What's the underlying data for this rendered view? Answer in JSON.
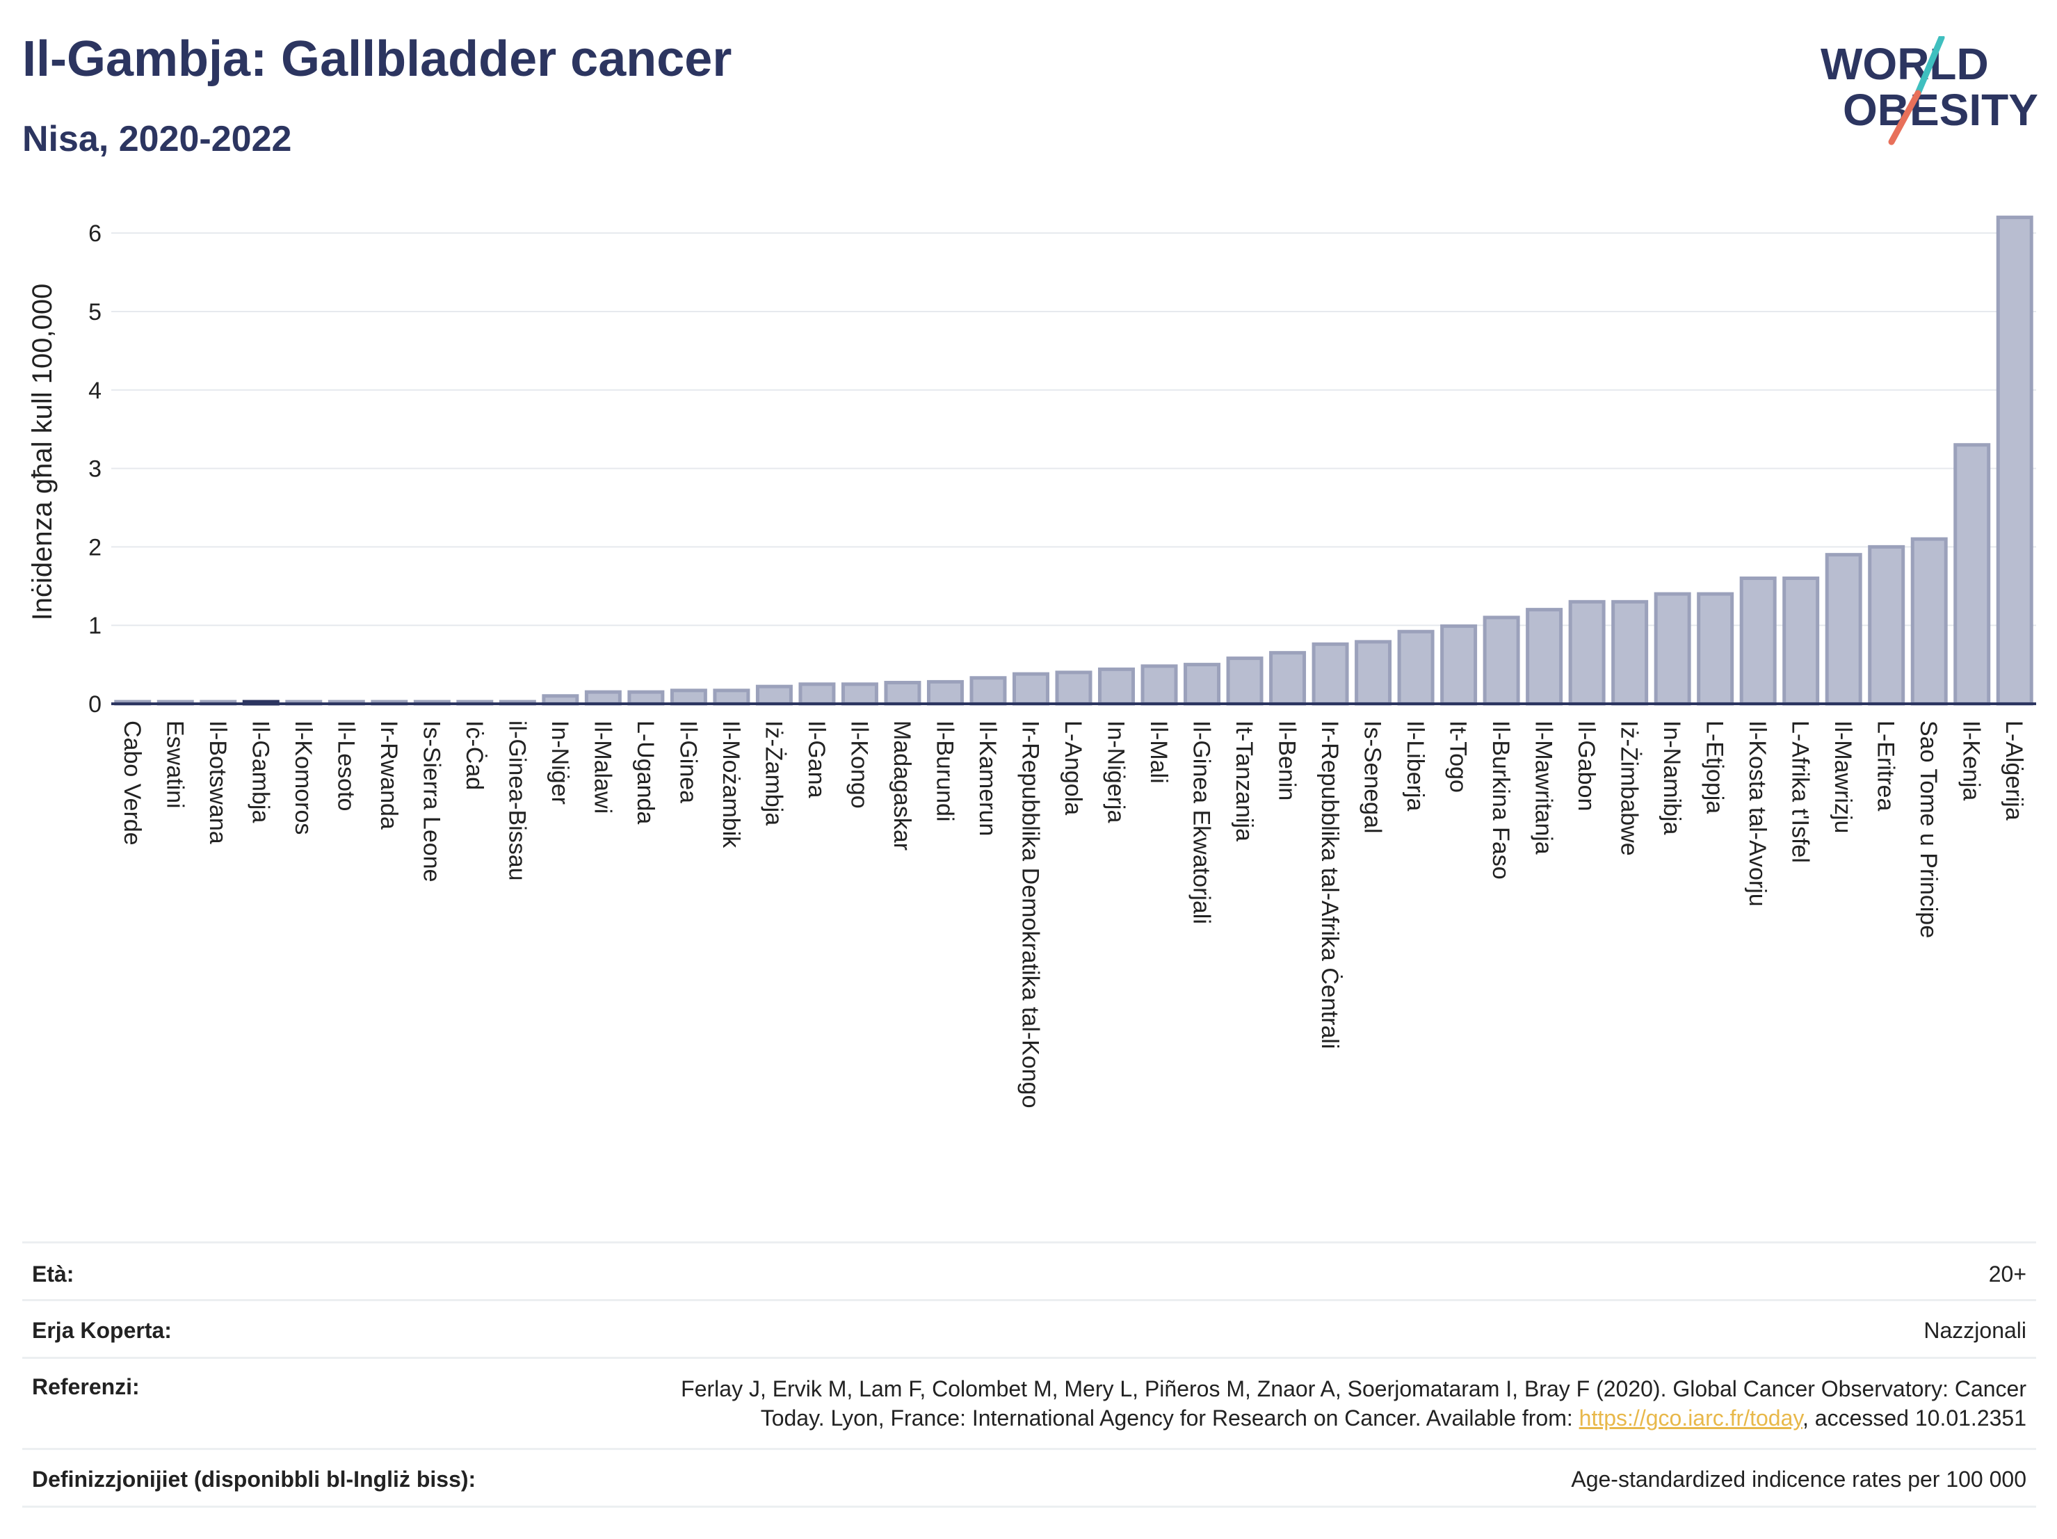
{
  "header": {
    "title": "Il-Gambja: Gallbladder cancer",
    "subtitle": "Nisa, 2020-2022"
  },
  "logo": {
    "line1": "WORLD",
    "line2": "OBESITY",
    "colors": {
      "text": "#2c3560",
      "slash_teal": "#3fbfbf",
      "slash_coral": "#e8705a"
    }
  },
  "chart_data": {
    "type": "bar",
    "ylabel": "Inċidenza għal kull 100,000",
    "ylim": [
      0,
      6.4
    ],
    "yticks": [
      0,
      1,
      2,
      3,
      4,
      5,
      6
    ],
    "grid": true,
    "bar_color": "#b8bdd0",
    "bar_edge_color": "#9ba1bb",
    "highlight_color": "#2c3560",
    "highlight_category": "Il-Gambja",
    "categories": [
      "Cabo Verde",
      "Eswatini",
      "Il-Botswana",
      "Il-Gambja",
      "Il-Komoros",
      "Il-Lesoto",
      "Ir-Rwanda",
      "Is-Sierra Leone",
      "Iċ-Ċad",
      "il-Ginea-Bissau",
      "In-Niġer",
      "Il-Malawi",
      "L-Uganda",
      "Il-Ginea",
      "Il-Możambik",
      "Iż-Żambja",
      "Il-Gana",
      "Il-Kongo",
      "Madagaskar",
      "Il-Burundi",
      "Il-Kamerun",
      "Ir-Repubblika Demokratika tal-Kongo",
      "L-Angola",
      "In-Niġerja",
      "Il-Mali",
      "Il-Ginea Ekwatorjali",
      "It-Tanzanija",
      "Il-Benin",
      "Ir-Repubblika tal-Afrika Ċentrali",
      "Is-Senegal",
      "Il-Liberja",
      "It-Togo",
      "Il-Burkina Faso",
      "Il-Mawritanja",
      "Il-Gabon",
      "Iż-Żimbabwe",
      "In-Namibja",
      "L-Etjopja",
      "Il-Kosta tal-Avorju",
      "L-Afrika t'Isfel",
      "Il-Mawrizju",
      "L-Eritrea",
      "Sao Tome u Principe",
      "Il-Kenja",
      "L-Alġerija"
    ],
    "values": [
      0.02,
      0.02,
      0.02,
      0.02,
      0.02,
      0.02,
      0.02,
      0.02,
      0.02,
      0.02,
      0.1,
      0.15,
      0.15,
      0.17,
      0.17,
      0.22,
      0.25,
      0.25,
      0.27,
      0.28,
      0.33,
      0.38,
      0.4,
      0.44,
      0.48,
      0.5,
      0.58,
      0.65,
      0.76,
      0.79,
      0.92,
      0.99,
      1.1,
      1.2,
      1.3,
      1.3,
      1.4,
      1.4,
      1.6,
      1.6,
      1.9,
      2.0,
      2.1,
      3.3,
      6.2
    ]
  },
  "info": {
    "rows": [
      {
        "label": "Età:",
        "value": "20+"
      },
      {
        "label": "Erja Koperta:",
        "value": "Nazzjonali"
      },
      {
        "label": "Referenzi:",
        "value_line1": "Ferlay J, Ervik M, Lam F, Colombet M, Mery L, Piñeros M, Znaor A, Soerjomataram I, Bray F (2020). Global Cancer Observatory: Cancer",
        "value_line2_pre": "Today. Lyon, France: International Agency for Research on Cancer. Available from: ",
        "link": "https://gco.iarc.fr/today",
        "value_line2_post": ", accessed 10.01.2351"
      },
      {
        "label": "Definizzjonijiet (disponibbli bl-Ingliż biss):",
        "value": "Age-standardized indicence rates per 100 000"
      }
    ]
  }
}
